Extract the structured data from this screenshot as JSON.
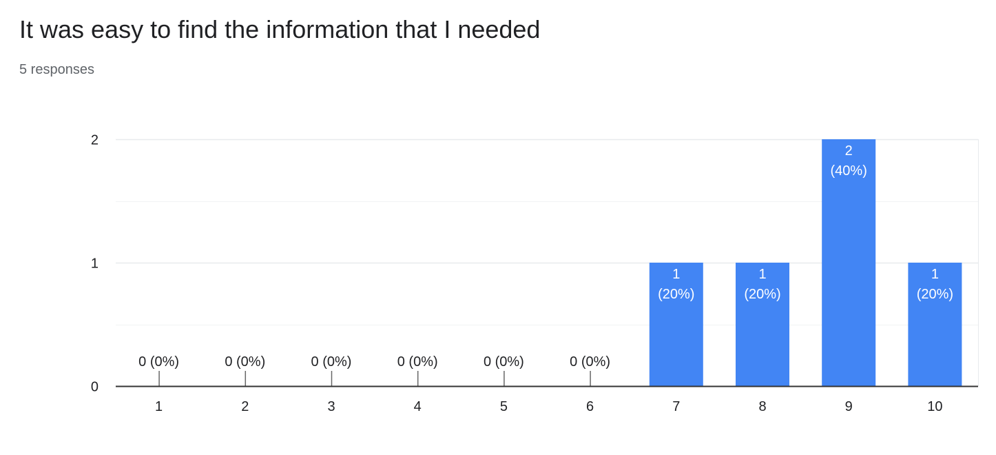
{
  "header": {
    "title": "It was easy to find the information that I needed",
    "responses": "5 responses"
  },
  "colors": {
    "bar": "#4285f4",
    "gridline": "#e8eaed",
    "minor_gridline": "#f1f3f4",
    "axis": "#333333",
    "text": "#202124"
  },
  "chart_data": {
    "type": "bar",
    "title": "It was easy to find the information that I needed",
    "categories": [
      "1",
      "2",
      "3",
      "4",
      "5",
      "6",
      "7",
      "8",
      "9",
      "10"
    ],
    "values": [
      0,
      0,
      0,
      0,
      0,
      0,
      1,
      1,
      2,
      1
    ],
    "data_labels": [
      "0 (0%)",
      "0 (0%)",
      "0 (0%)",
      "0 (0%)",
      "0 (0%)",
      "0 (0%)",
      "1 (20%)",
      "1 (20%)",
      "2 (40%)",
      "1 (20%)"
    ],
    "ylim": [
      0,
      2
    ],
    "yticks": [
      0,
      1,
      2
    ],
    "grid": true,
    "legend": "none",
    "xlabel": "",
    "ylabel": ""
  }
}
